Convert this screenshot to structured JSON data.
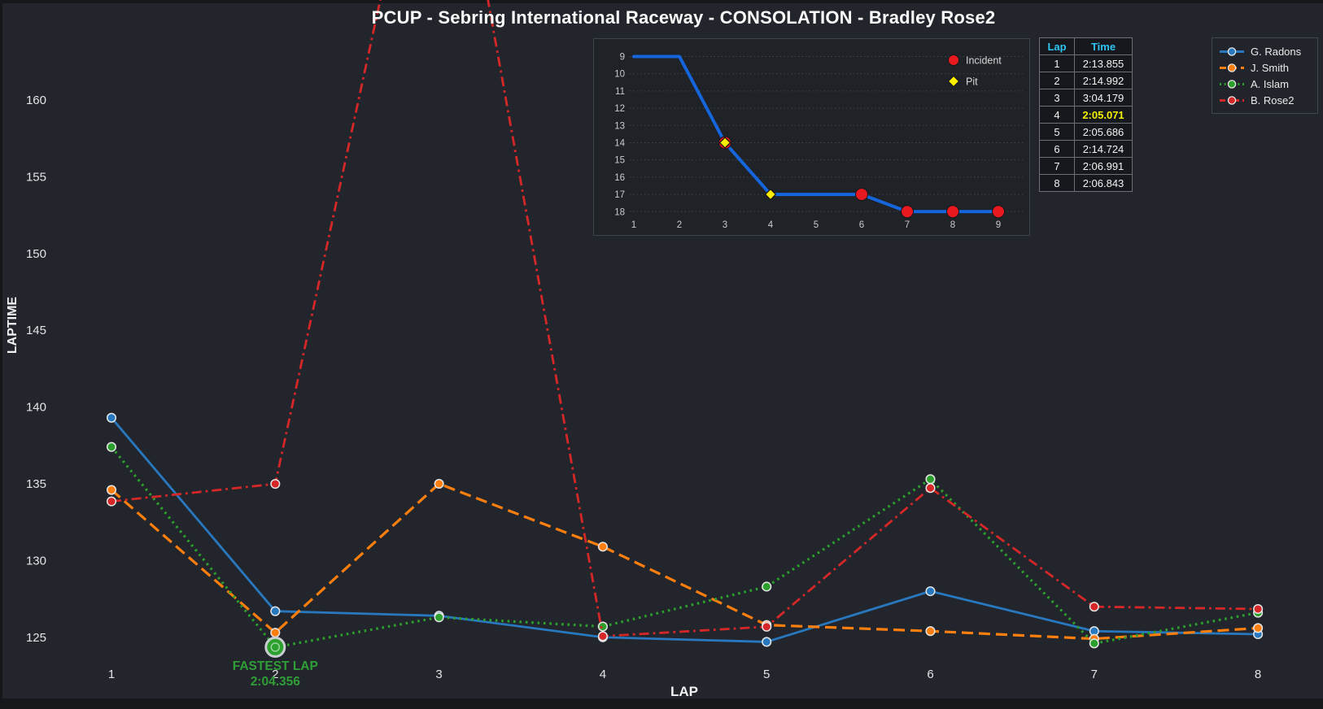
{
  "title": "PCUP - Sebring International Raceway - CONSOLATION - Bradley Rose2",
  "chart_data": [
    {
      "id": "laptime-chart",
      "type": "line",
      "title": "PCUP - Sebring International Raceway - CONSOLATION - Bradley Rose2",
      "xlabel": "LAP",
      "ylabel": "LAPTIME",
      "x": [
        1,
        2,
        3,
        4,
        5,
        6,
        7,
        8
      ],
      "x_ticks": [
        "1",
        "2",
        "3",
        "4",
        "5",
        "6",
        "7",
        "8"
      ],
      "y_ticks": [
        125,
        130,
        135,
        140,
        145,
        150,
        155,
        160
      ],
      "ylim_displayed": [
        121,
        166
      ],
      "grid": false,
      "series": [
        {
          "name": "G. Radons",
          "color": "#2878bf",
          "line_style": "solid",
          "marker": "circle",
          "values": [
            139.3,
            126.7,
            126.4,
            125.0,
            124.7,
            128.0,
            125.4,
            125.2
          ]
        },
        {
          "name": "J. Smith",
          "color": "#ff7f0e",
          "line_style": "dashed",
          "marker": "circle",
          "values": [
            134.6,
            125.3,
            135.0,
            130.9,
            125.8,
            125.4,
            124.9,
            125.6
          ]
        },
        {
          "name": "A. Islam",
          "color": "#2ca02c",
          "line_style": "dotted",
          "marker": "circle",
          "values": [
            137.4,
            124.356,
            126.3,
            125.7,
            128.3,
            135.3,
            124.6,
            126.6
          ]
        },
        {
          "name": "B. Rose2",
          "color": "#d62728",
          "line_style": "dashdot",
          "marker": "circle",
          "values": [
            133.855,
            134.992,
            184.179,
            125.071,
            125.686,
            134.724,
            126.991,
            126.843
          ]
        }
      ],
      "annotation": {
        "line1": "FASTEST LAP",
        "line2": "2:04.356",
        "series": "A. Islam",
        "lap": 2,
        "color": "#2f9e37"
      }
    },
    {
      "id": "position-inset",
      "type": "line",
      "x": [
        1,
        2,
        3,
        4,
        5,
        6,
        7,
        8,
        9
      ],
      "x_ticks": [
        "1",
        "2",
        "3",
        "4",
        "5",
        "6",
        "7",
        "8",
        "9"
      ],
      "y_ticks": [
        9,
        10,
        11,
        12,
        13,
        14,
        15,
        16,
        17,
        18
      ],
      "y_inverted": true,
      "grid": "horizontal-dotted",
      "series": [
        {
          "name": "Position",
          "color": "#1565dd",
          "line_style": "solid",
          "values": [
            9,
            9,
            14,
            17,
            17,
            17,
            18,
            18,
            18
          ]
        }
      ],
      "incident_laps": [
        3,
        6,
        7,
        8,
        9
      ],
      "pit_laps": [
        3,
        4
      ],
      "legend": [
        {
          "label": "Incident",
          "marker": "circle",
          "color": "#e8191f"
        },
        {
          "label": "Pit",
          "marker": "diamond",
          "color": "#ffee00"
        }
      ]
    }
  ],
  "lap_table": {
    "headers": [
      "Lap",
      "Time"
    ],
    "header_color": "#2ec4f2",
    "highlight_color": "#f5f000",
    "rows": [
      {
        "lap": "1",
        "time": "2:13.855",
        "highlight": false
      },
      {
        "lap": "2",
        "time": "2:14.992",
        "highlight": false
      },
      {
        "lap": "3",
        "time": "3:04.179",
        "highlight": false
      },
      {
        "lap": "4",
        "time": "2:05.071",
        "highlight": true
      },
      {
        "lap": "5",
        "time": "2:05.686",
        "highlight": false
      },
      {
        "lap": "6",
        "time": "2:14.724",
        "highlight": false
      },
      {
        "lap": "7",
        "time": "2:06.991",
        "highlight": false
      },
      {
        "lap": "8",
        "time": "2:06.843",
        "highlight": false
      }
    ]
  },
  "legend": {
    "items": [
      {
        "label": "G. Radons",
        "color": "#2878bf",
        "line_style": "solid"
      },
      {
        "label": "J. Smith",
        "color": "#ff7f0e",
        "line_style": "dashed"
      },
      {
        "label": "A. Islam",
        "color": "#2ca02c",
        "line_style": "dotted"
      },
      {
        "label": "B. Rose2",
        "color": "#d62728",
        "line_style": "dashdot"
      }
    ]
  },
  "colors": {
    "background": "#22252b",
    "panel_background": "#1f2227",
    "figure_edge": "#15171b",
    "tick_text": "#e2e4e6",
    "axis_label": "#f2f3f4",
    "grid_dotted": "#40454d",
    "table_border": "#6d7177",
    "marker_ring": "#e6e6e6"
  }
}
